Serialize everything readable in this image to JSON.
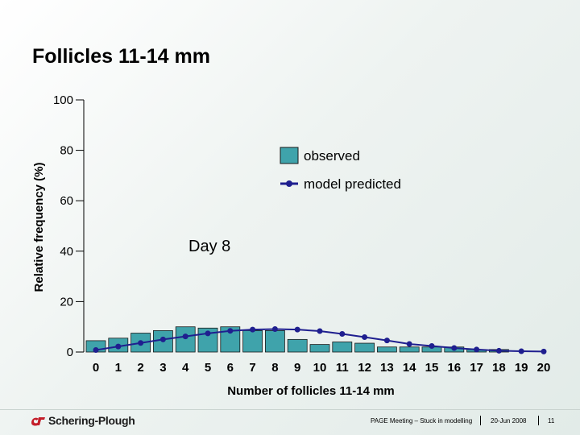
{
  "slide": {
    "title": "Follicles 11-14 mm"
  },
  "chart_data": {
    "type": "bar",
    "xlabel": "Number of follicles 11-14 mm",
    "ylabel": "Relative frequency (%)",
    "ylim": [
      0,
      100
    ],
    "yticks": [
      0,
      20,
      40,
      60,
      80,
      100
    ],
    "x": [
      0,
      1,
      2,
      3,
      4,
      5,
      6,
      7,
      8,
      9,
      10,
      11,
      12,
      13,
      14,
      15,
      16,
      17,
      18,
      19,
      20
    ],
    "series": [
      {
        "name": "observed",
        "kind": "bar",
        "color": "#3fa3ab",
        "values": [
          4.5,
          5.5,
          7.5,
          8.5,
          10.0,
          9.5,
          10.0,
          8.5,
          8.5,
          5.0,
          3.0,
          4.0,
          3.5,
          2.0,
          2.0,
          2.0,
          2.0,
          1.0,
          1.0,
          0.0,
          0.0
        ]
      },
      {
        "name": "model predicted",
        "kind": "line",
        "color": "#1f1f8f",
        "values": [
          0.8,
          2.2,
          3.6,
          5.0,
          6.2,
          7.4,
          8.4,
          8.9,
          9.1,
          8.9,
          8.3,
          7.2,
          5.9,
          4.6,
          3.2,
          2.4,
          1.6,
          1.0,
          0.5,
          0.3,
          0.2
        ]
      }
    ],
    "annotation": "Day 8",
    "grid": false,
    "legend_position": "top-right"
  },
  "footer": {
    "logo_text": "Schering-Plough",
    "meeting": "PAGE Meeting – Stuck in modelling",
    "date": "20-Jun 2008",
    "page": "11"
  }
}
